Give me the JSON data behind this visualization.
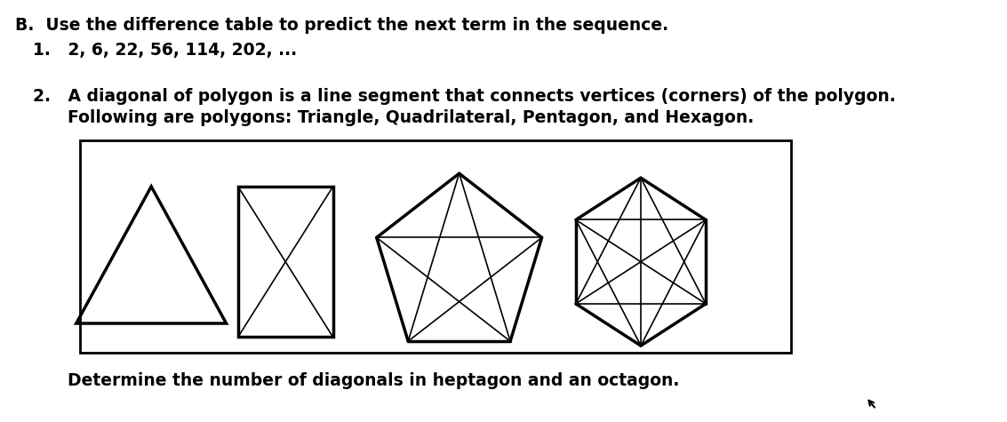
{
  "title_b": "B.  Use the difference table to predict the next term in the sequence.",
  "item1": "1.   2, 6, 22, 56, 114, 202, ...",
  "item2_line1": "2.   A diagonal of polygon is a line segment that connects vertices (corners) of the polygon.",
  "item2_line2": "      Following are polygons: Triangle, Quadrilateral, Pentagon, and Hexagon.",
  "item2_line3": "      Determine the number of diagonals in heptagon and an octagon.",
  "bg_color": "#ffffff",
  "box_color": "#000000",
  "polygon_color": "#000000",
  "text_color": "#000000",
  "font_size_body": 13.5
}
